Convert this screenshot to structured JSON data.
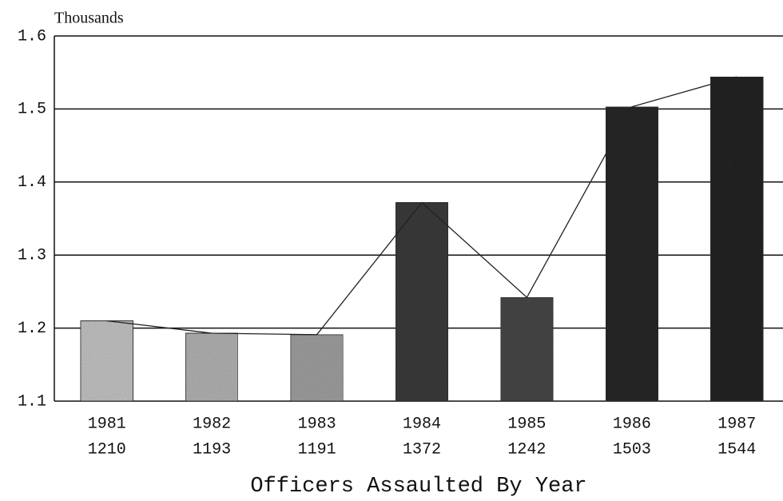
{
  "chart_data": {
    "type": "bar",
    "title": "Officers Assaulted By Year",
    "y_label": "Thousands",
    "categories": [
      "1981",
      "1982",
      "1983",
      "1984",
      "1985",
      "1986",
      "1987"
    ],
    "values": [
      1.21,
      1.193,
      1.191,
      1.372,
      1.242,
      1.503,
      1.544
    ],
    "value_labels": [
      "1210",
      "1193",
      "1191",
      "1372",
      "1242",
      "1503",
      "1544"
    ],
    "colors": [
      "#c4c4c4",
      "#b4b4b4",
      "#a0a0a0",
      "#3c3c3c",
      "#484848",
      "#2a2a2a",
      "#262626"
    ],
    "line_color": "#222222",
    "ylim": [
      1.1,
      1.6
    ],
    "yticks": [
      1.1,
      1.2,
      1.3,
      1.4,
      1.5,
      1.6
    ],
    "grid": true
  }
}
